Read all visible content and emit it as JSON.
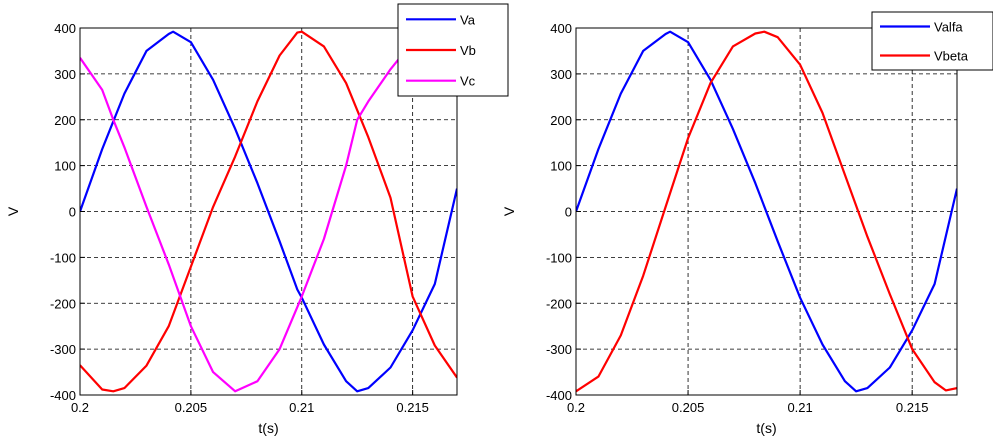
{
  "chart_data": [
    {
      "type": "line",
      "xlabel": "t(s)",
      "ylabel": "V",
      "xlim": [
        0.2,
        0.217
      ],
      "ylim": [
        -400,
        400
      ],
      "xticks": [
        0.2,
        0.205,
        0.21,
        0.215
      ],
      "xtick_labels": [
        "0.2",
        "0.205",
        "0.21",
        "0.215"
      ],
      "yticks": [
        -400,
        -300,
        -200,
        -100,
        0,
        100,
        200,
        300,
        400
      ],
      "ytick_labels": [
        "-400",
        "-300",
        "-200",
        "-100",
        "0",
        "100",
        "200",
        "300",
        "400"
      ],
      "grid": true,
      "legend_position": "top-right",
      "series": [
        {
          "name": "Va",
          "color": "#0000ff",
          "x": [
            0.2,
            0.201,
            0.202,
            0.203,
            0.204,
            0.2042,
            0.205,
            0.206,
            0.207,
            0.208,
            0.209,
            0.2098,
            0.21,
            0.211,
            0.212,
            0.2125,
            0.213,
            0.214,
            0.215,
            0.216,
            0.217
          ],
          "y": [
            0,
            136,
            257,
            350,
            387,
            392,
            369,
            287,
            180,
            62,
            -65,
            -170,
            -188,
            -290,
            -370,
            -392,
            -385,
            -340,
            -259,
            -158,
            50
          ]
        },
        {
          "name": "Vb",
          "color": "#ff0000",
          "x": [
            0.2,
            0.201,
            0.2015,
            0.202,
            0.203,
            0.204,
            0.205,
            0.206,
            0.207,
            0.208,
            0.209,
            0.2098,
            0.21,
            0.211,
            0.212,
            0.213,
            0.214,
            0.215,
            0.216,
            0.217
          ],
          "y": [
            -335,
            -388,
            -392,
            -385,
            -336,
            -250,
            -120,
            10,
            120,
            240,
            340,
            390,
            392,
            360,
            280,
            162,
            30,
            -185,
            -292,
            -362
          ]
        },
        {
          "name": "Vc",
          "color": "#ff00ff",
          "x": [
            0.2,
            0.201,
            0.2015,
            0.202,
            0.203,
            0.204,
            0.205,
            0.206,
            0.207,
            0.208,
            0.209,
            0.21,
            0.211,
            0.212,
            0.2125,
            0.213,
            0.214,
            0.215,
            0.2157
          ],
          "y": [
            335,
            265,
            200,
            140,
            10,
            -115,
            -250,
            -350,
            -392,
            -370,
            -300,
            -185,
            -60,
            100,
            200,
            240,
            310,
            370,
            392
          ]
        }
      ]
    },
    {
      "type": "line",
      "xlabel": "t(s)",
      "ylabel": "V",
      "xlim": [
        0.2,
        0.217
      ],
      "ylim": [
        -400,
        400
      ],
      "xticks": [
        0.2,
        0.205,
        0.21,
        0.215
      ],
      "xtick_labels": [
        "0.2",
        "0.205",
        "0.21",
        "0.215"
      ],
      "yticks": [
        -400,
        -300,
        -200,
        -100,
        0,
        100,
        200,
        300,
        400
      ],
      "ytick_labels": [
        "-400",
        "-300",
        "-200",
        "-100",
        "0",
        "100",
        "200",
        "300",
        "400"
      ],
      "grid": true,
      "legend_position": "top-right",
      "series": [
        {
          "name": "Valfa",
          "color": "#0000ff",
          "x": [
            0.2,
            0.201,
            0.202,
            0.203,
            0.204,
            0.2042,
            0.205,
            0.206,
            0.207,
            0.208,
            0.209,
            0.21,
            0.211,
            0.212,
            0.2125,
            0.213,
            0.214,
            0.215,
            0.216,
            0.217
          ],
          "y": [
            0,
            136,
            257,
            350,
            387,
            392,
            369,
            287,
            180,
            62,
            -65,
            -188,
            -290,
            -370,
            -392,
            -385,
            -340,
            -259,
            -158,
            50
          ]
        },
        {
          "name": "Vbeta",
          "color": "#ff0000",
          "x": [
            0.2,
            0.201,
            0.202,
            0.203,
            0.204,
            0.205,
            0.206,
            0.207,
            0.208,
            0.2084,
            0.209,
            0.21,
            0.211,
            0.212,
            0.213,
            0.214,
            0.215,
            0.216,
            0.2165,
            0.217
          ],
          "y": [
            -392,
            -360,
            -270,
            -140,
            10,
            160,
            280,
            360,
            388,
            392,
            380,
            320,
            215,
            80,
            -55,
            -180,
            -300,
            -372,
            -390,
            -385
          ]
        }
      ]
    }
  ]
}
